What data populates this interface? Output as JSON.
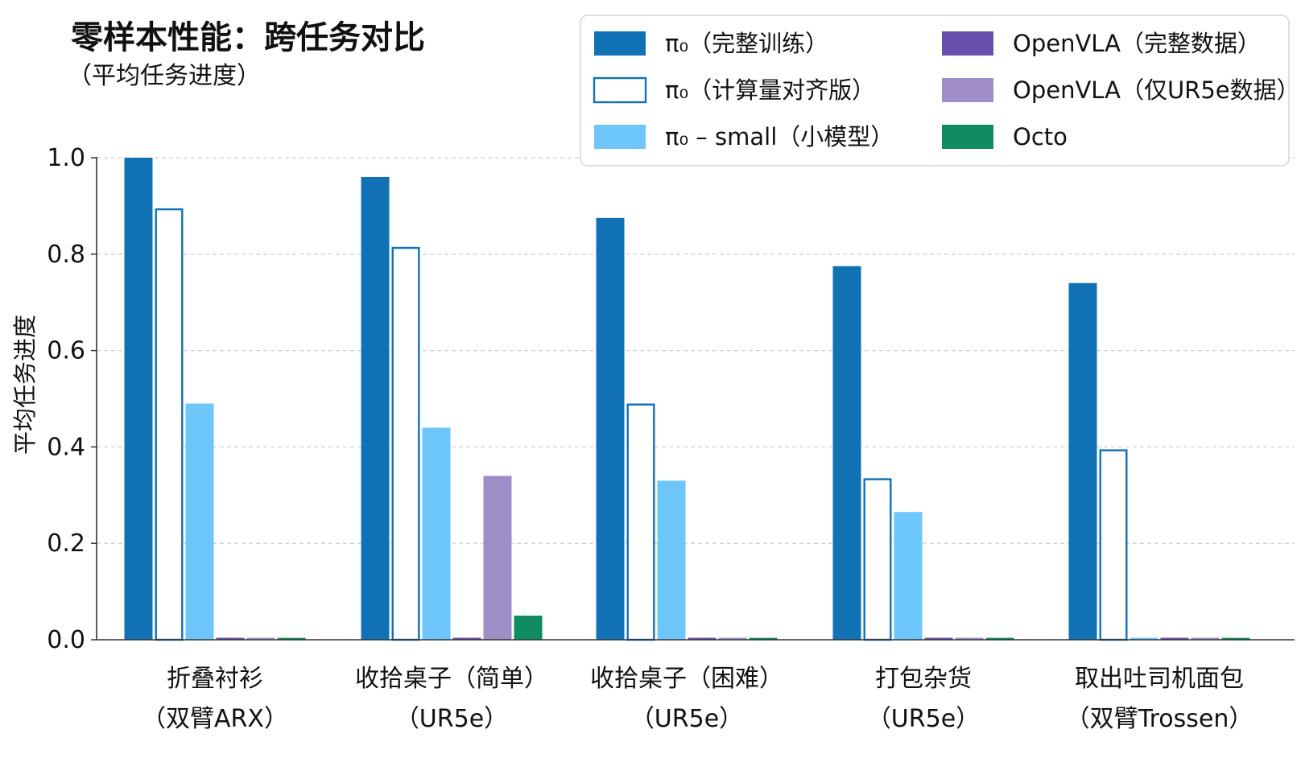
{
  "chart_data": {
    "type": "bar",
    "title": "零样本性能：跨任务对比",
    "subtitle": "（平均任务进度）",
    "xlabel": "",
    "ylabel": "平均任务进度",
    "ylim": [
      0,
      1.0
    ],
    "yticks": [
      "0.0",
      "0.2",
      "0.4",
      "0.6",
      "0.8",
      "1.0"
    ],
    "grid": true,
    "legend_position": "top-right",
    "categories": [
      [
        "折叠衬衫",
        "（双臂ARX）"
      ],
      [
        "收拾桌子（简单）",
        "（UR5e）"
      ],
      [
        "收拾桌子（困难）",
        "（UR5e）"
      ],
      [
        "打包杂货",
        "（UR5e）"
      ],
      [
        "取出吐司机面包",
        "（双臂Trossen）"
      ]
    ],
    "series": [
      {
        "name": "π₀（完整训练）",
        "style": "filled",
        "color": "#1071b5",
        "values": [
          1.0,
          0.96,
          0.875,
          0.775,
          0.74
        ]
      },
      {
        "name": "π₀（计算量对齐版）",
        "style": "outline",
        "color": "#1071b5",
        "values": [
          0.895,
          0.815,
          0.49,
          0.335,
          0.395
        ]
      },
      {
        "name": "π₀ – small（小模型）",
        "style": "filled",
        "color": "#6cc6f9",
        "values": [
          0.49,
          0.44,
          0.33,
          0.265,
          0.0
        ]
      },
      {
        "name": "OpenVLA（完整数据）",
        "style": "filled",
        "color": "#6b4fac",
        "values": [
          0.0,
          0.0,
          0.0,
          0.0,
          0.0
        ]
      },
      {
        "name": "OpenVLA（仅UR5e数据）",
        "style": "filled",
        "color": "#9e8dc6",
        "values": [
          0.0,
          0.34,
          0.0,
          0.0,
          0.0
        ]
      },
      {
        "name": "Octo",
        "style": "filled",
        "color": "#0f8c60",
        "values": [
          0.004,
          0.05,
          0.004,
          0.004,
          0.004
        ]
      }
    ],
    "colors": {
      "grid": "#cfcfcf",
      "axis": "#333333",
      "legend_border": "#d6d6d6"
    }
  }
}
